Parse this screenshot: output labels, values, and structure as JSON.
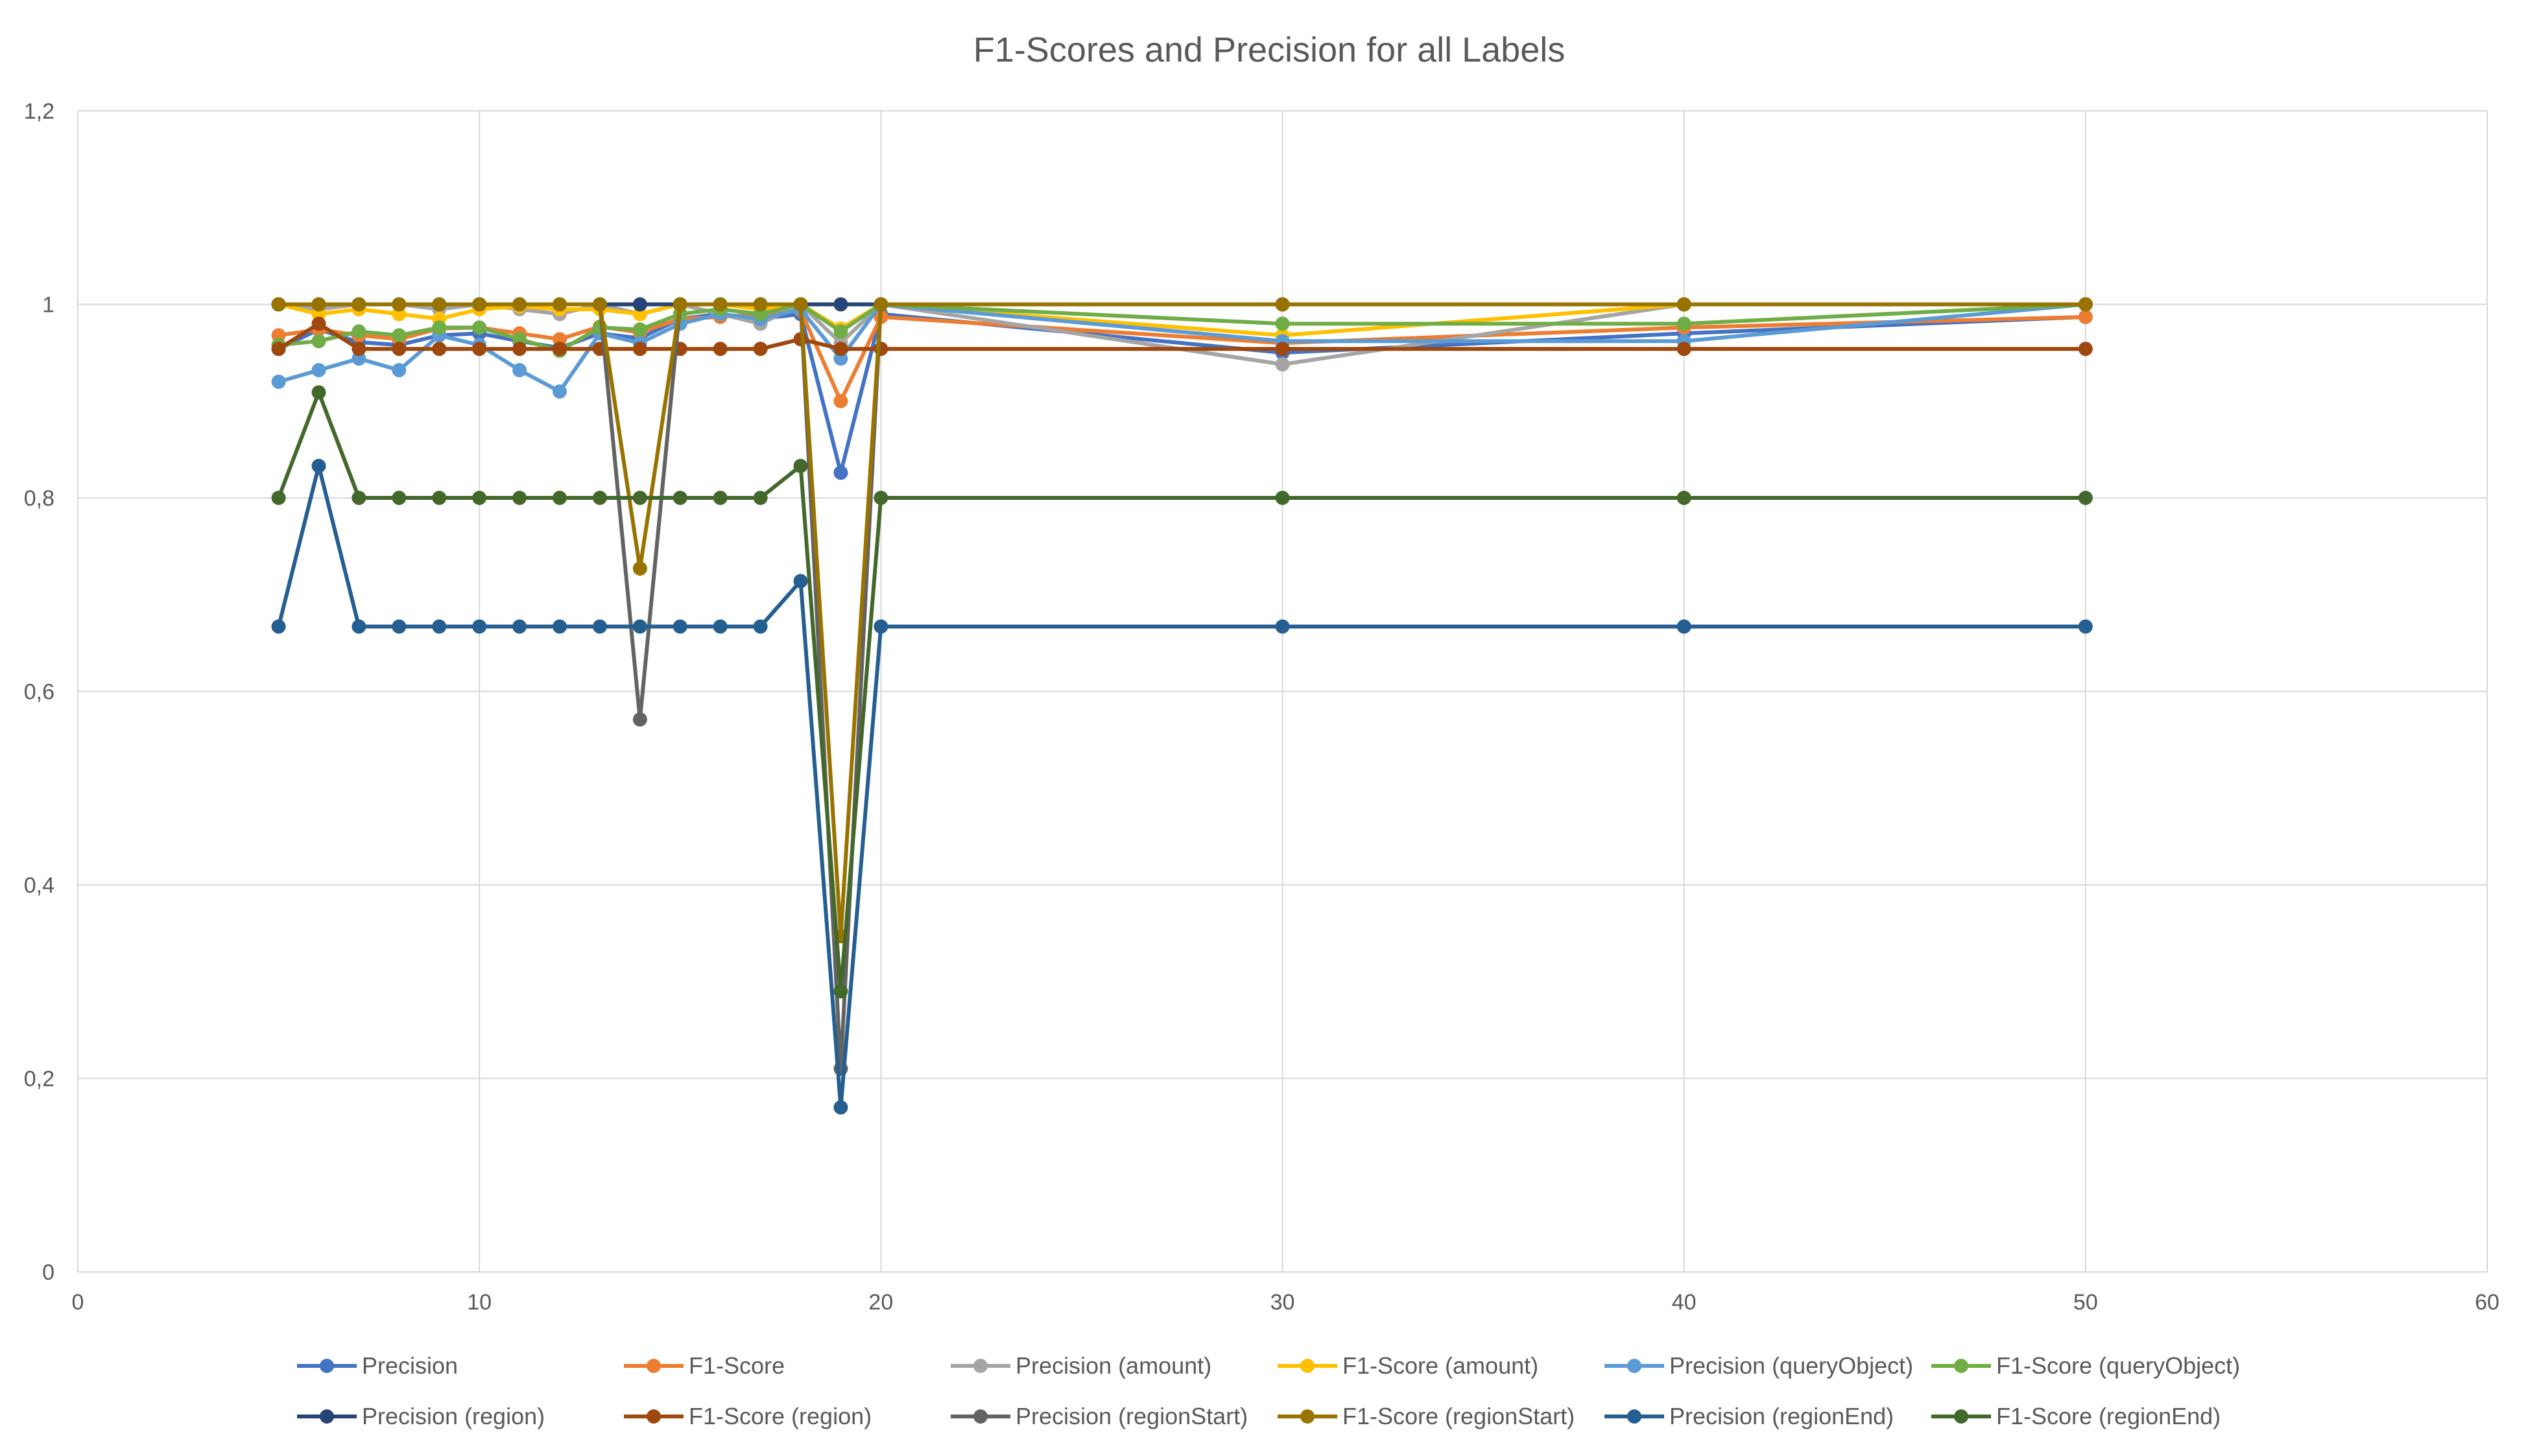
{
  "chart_data": {
    "type": "line",
    "title": "F1-Scores and Precision for all Labels",
    "xlabel": "",
    "ylabel": "",
    "xlim": [
      0,
      60
    ],
    "ylim": [
      0,
      1.2
    ],
    "x_ticks": [
      0,
      10,
      20,
      30,
      40,
      50,
      60
    ],
    "x_tick_labels": [
      "0",
      "10",
      "20",
      "30",
      "40",
      "50",
      "60"
    ],
    "y_ticks": [
      0,
      0.2,
      0.4,
      0.6,
      0.8,
      1,
      1.2
    ],
    "y_tick_labels": [
      "0",
      "0,2",
      "0,4",
      "0,6",
      "0,8",
      "1",
      "1,2"
    ],
    "grid": true,
    "legend_position": "bottom",
    "x": [
      5,
      6,
      7,
      8,
      9,
      10,
      11,
      12,
      13,
      14,
      15,
      16,
      17,
      18,
      19,
      20,
      30,
      40,
      50
    ],
    "series": [
      {
        "name": "Precision",
        "color": "#4472C4",
        "values": [
          0.954,
          0.974,
          0.961,
          0.958,
          0.968,
          0.97,
          0.962,
          0.955,
          0.97,
          0.965,
          0.985,
          0.99,
          0.985,
          0.99,
          0.826,
          0.99,
          0.95,
          0.97,
          0.987
        ]
      },
      {
        "name": "F1-Score",
        "color": "#ED7D31",
        "values": [
          0.968,
          0.974,
          0.968,
          0.964,
          0.975,
          0.976,
          0.97,
          0.964,
          0.977,
          0.971,
          0.985,
          0.987,
          0.99,
          0.994,
          0.9,
          0.987,
          0.96,
          0.976,
          0.987
        ]
      },
      {
        "name": "Precision (amount)",
        "color": "#A5A5A5",
        "values": [
          1,
          0.995,
          1,
          1,
          0.995,
          1,
          0.995,
          0.99,
          1,
          0.99,
          1,
          0.99,
          0.98,
          1,
          0.96,
          1,
          0.938,
          1,
          1
        ]
      },
      {
        "name": "F1-Score (amount)",
        "color": "#FFC000",
        "values": [
          1,
          0.99,
          0.995,
          0.99,
          0.985,
          0.995,
          0.998,
          0.995,
          0.995,
          0.99,
          1,
          1,
          0.995,
          1,
          0.975,
          1,
          0.968,
          1,
          1
        ]
      },
      {
        "name": "Precision (queryObject)",
        "color": "#5B9BD5",
        "values": [
          0.92,
          0.932,
          0.944,
          0.932,
          0.968,
          0.958,
          0.932,
          0.91,
          0.97,
          0.96,
          0.98,
          0.99,
          0.985,
          0.995,
          0.944,
          1,
          0.962,
          0.962,
          1
        ]
      },
      {
        "name": "F1-Score (queryObject)",
        "color": "#70AD47",
        "values": [
          0.958,
          0.962,
          0.972,
          0.968,
          0.976,
          0.976,
          0.964,
          0.952,
          0.976,
          0.974,
          0.99,
          0.995,
          0.99,
          1,
          0.972,
          1,
          0.98,
          0.98,
          1
        ]
      },
      {
        "name": "Precision (region)",
        "color": "#264478",
        "values": [
          1,
          1,
          1,
          1,
          1,
          1,
          1,
          1,
          1,
          1,
          1,
          1,
          1,
          1,
          1,
          1,
          1,
          1,
          1
        ]
      },
      {
        "name": "F1-Score (region)",
        "color": "#9E480E",
        "values": [
          0.954,
          0.98,
          0.954,
          0.954,
          0.954,
          0.954,
          0.954,
          0.954,
          0.954,
          0.954,
          0.954,
          0.954,
          0.954,
          0.964,
          0.954,
          0.954,
          0.954,
          0.954,
          0.954
        ]
      },
      {
        "name": "Precision (regionStart)",
        "color": "#636363",
        "values": [
          1,
          1,
          1,
          1,
          1,
          1,
          1,
          1,
          1,
          0.571,
          1,
          1,
          1,
          1,
          0.21,
          1,
          1,
          1,
          1
        ]
      },
      {
        "name": "F1-Score (regionStart)",
        "color": "#997300",
        "values": [
          1,
          1,
          1,
          1,
          1,
          1,
          1,
          1,
          1,
          0.727,
          1,
          1,
          1,
          1,
          0.347,
          1,
          1,
          1,
          1
        ]
      },
      {
        "name": "Precision (regionEnd)",
        "color": "#255E91",
        "values": [
          0.667,
          0.833,
          0.667,
          0.667,
          0.667,
          0.667,
          0.667,
          0.667,
          0.667,
          0.667,
          0.667,
          0.667,
          0.667,
          0.714,
          0.17,
          0.667,
          0.667,
          0.667,
          0.667
        ]
      },
      {
        "name": "F1-Score (regionEnd)",
        "color": "#43682B",
        "values": [
          0.8,
          0.909,
          0.8,
          0.8,
          0.8,
          0.8,
          0.8,
          0.8,
          0.8,
          0.8,
          0.8,
          0.8,
          0.8,
          0.833,
          0.29,
          0.8,
          0.8,
          0.8,
          0.8
        ]
      }
    ]
  }
}
